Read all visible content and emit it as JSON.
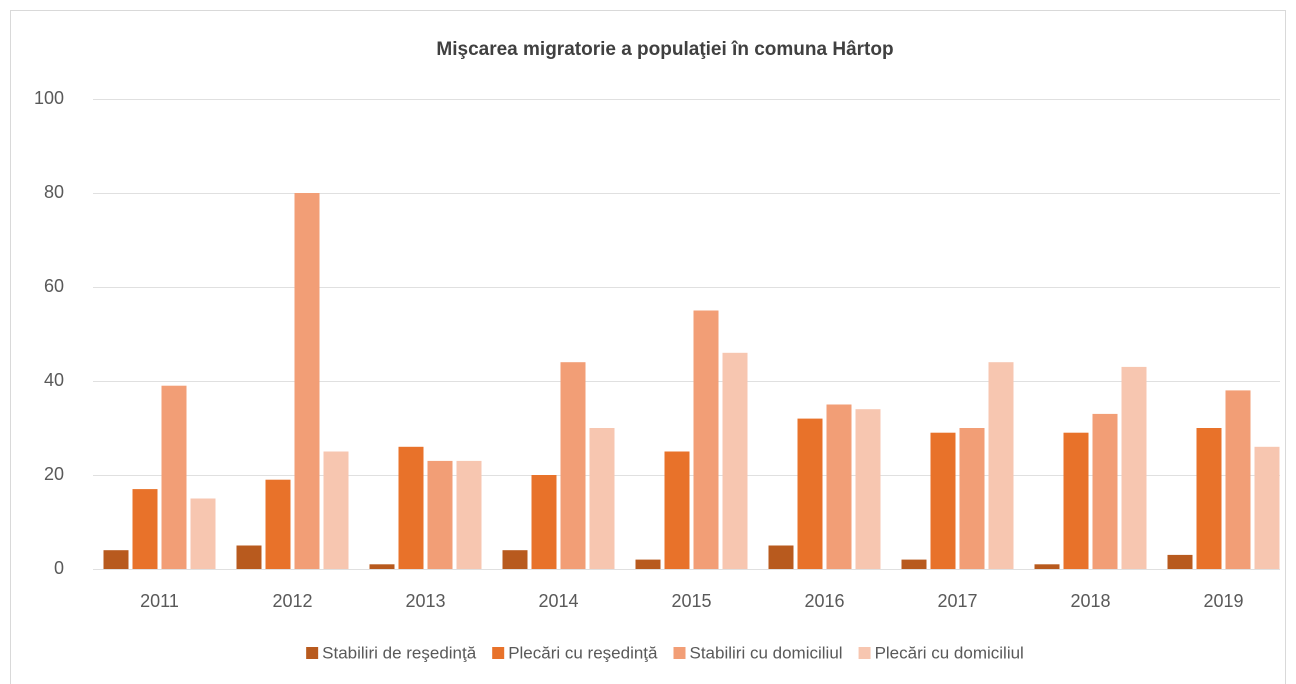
{
  "chart_data": {
    "type": "bar",
    "title": "Mişcarea migratorie a populaţiei în comuna Hârtop",
    "categories": [
      "2011",
      "2012",
      "2013",
      "2014",
      "2015",
      "2016",
      "2017",
      "2018",
      "2019"
    ],
    "series": [
      {
        "name": "Stabiliri de reşedinţă",
        "color": "#b85a1e",
        "values": [
          4,
          5,
          1,
          4,
          2,
          5,
          2,
          1,
          3
        ]
      },
      {
        "name": "Plecări cu reşedinţă",
        "color": "#e8722a",
        "values": [
          17,
          19,
          26,
          20,
          25,
          32,
          29,
          29,
          30
        ]
      },
      {
        "name": "Stabiliri cu domiciliul",
        "color": "#f29e76",
        "values": [
          39,
          80,
          23,
          44,
          55,
          35,
          30,
          33,
          38
        ]
      },
      {
        "name": "Plecări cu domiciliul",
        "color": "#f7c6b0",
        "values": [
          15,
          25,
          23,
          30,
          46,
          34,
          44,
          43,
          26
        ]
      }
    ],
    "ylim": [
      0,
      100
    ],
    "yticks": [
      0,
      20,
      40,
      60,
      80,
      100
    ],
    "grid": true,
    "legend": "bottom"
  }
}
